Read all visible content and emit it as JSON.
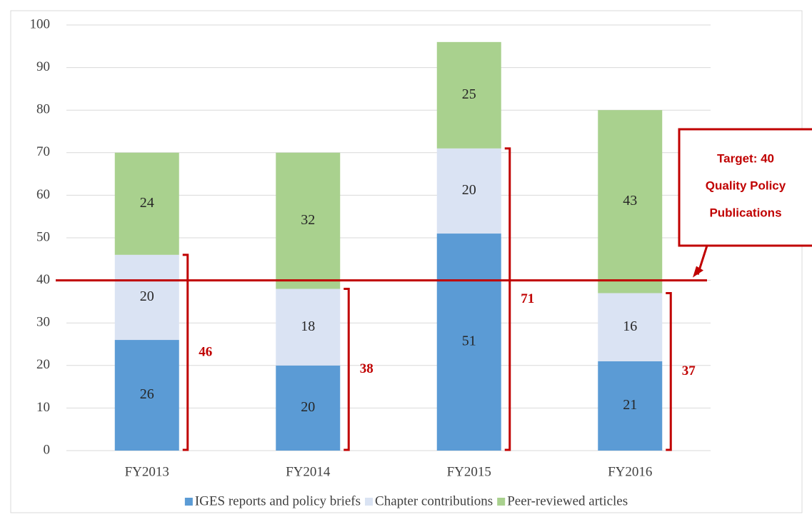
{
  "chart_data": {
    "type": "stacked_bar",
    "categories": [
      "FY2013",
      "FY2014",
      "FY2015",
      "FY2016"
    ],
    "series": [
      {
        "name": "IGES reports and policy briefs",
        "color": "#5b9bd5",
        "values": [
          26,
          20,
          51,
          21
        ]
      },
      {
        "name": "Chapter contributions",
        "color": "#dae3f3",
        "values": [
          20,
          18,
          20,
          16
        ]
      },
      {
        "name": "Peer-reviewed articles",
        "color": "#a9d18e",
        "values": [
          24,
          32,
          25,
          43
        ]
      }
    ],
    "bracket_values": [
      46,
      38,
      71,
      37
    ],
    "target": 40,
    "callout": [
      "Target: 40",
      "Quality Policy",
      "Publications"
    ],
    "ylim": [
      0,
      100
    ],
    "yticks": [
      0,
      10,
      20,
      30,
      40,
      50,
      60,
      70,
      80,
      90,
      100
    ],
    "grid": true,
    "legend": "bottom"
  }
}
